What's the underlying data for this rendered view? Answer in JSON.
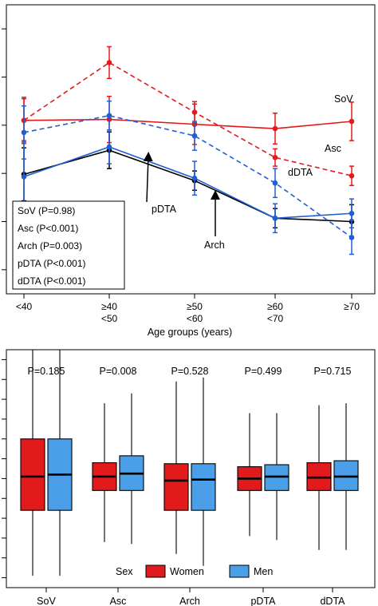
{
  "chart_data": [
    {
      "type": "line",
      "xlabel": "Age groups (years)",
      "ylabel": "",
      "categories": [
        {
          "line1": "<40",
          "line2": ""
        },
        {
          "line1": "≥40",
          "line2": "<50"
        },
        {
          "line1": "≥50",
          "line2": "<60"
        },
        {
          "line1": "≥60",
          "line2": "<70"
        },
        {
          "line1": "≥70",
          "line2": ""
        }
      ],
      "ylim": [
        0,
        6
      ],
      "y_ticks": [
        0.5,
        1.5,
        2.5,
        3.5,
        4.5,
        5.5
      ],
      "grid": false,
      "legend_position": "bottom-left",
      "series": [
        {
          "name": "SoV",
          "color": "#e31a1c",
          "dash": "solid",
          "values": [
            3.6,
            3.62,
            3.52,
            3.43,
            3.58
          ],
          "err": [
            0.48,
            0.48,
            0.42,
            0.32,
            0.4
          ]
        },
        {
          "name": "Asc",
          "color": "#e31a1c",
          "dash": "dashed",
          "values": [
            3.6,
            4.8,
            3.77,
            2.83,
            2.45
          ],
          "err": [
            0.45,
            0.33,
            0.22,
            0.18,
            0.2
          ]
        },
        {
          "name": "Arch",
          "color": "#000000",
          "dash": "solid",
          "values": [
            2.48,
            2.98,
            2.35,
            1.57,
            1.5
          ],
          "err": [
            0.55,
            0.38,
            0.2,
            0.2,
            0.35
          ]
        },
        {
          "name": "pDTA",
          "color": "#1f5fd6",
          "dash": "solid",
          "values": [
            2.43,
            3.05,
            2.4,
            1.57,
            1.67
          ],
          "err": [
            0.75,
            0.35,
            0.35,
            0.3,
            0.3
          ]
        },
        {
          "name": "dDTA",
          "color": "#1f5fd6",
          "dash": "dashed",
          "values": [
            3.35,
            3.7,
            3.28,
            2.3,
            1.17
          ],
          "err": [
            0.55,
            0.3,
            0.3,
            0.3,
            0.35
          ]
        }
      ],
      "line_labels": [
        {
          "series": "SoV",
          "text": "SoV"
        },
        {
          "series": "Asc",
          "text": "Asc"
        },
        {
          "series": "dDTA",
          "text": "dDTA"
        },
        {
          "series": "pDTA",
          "text": "pDTA"
        },
        {
          "series": "Arch",
          "text": "Arch"
        }
      ],
      "legend": [
        "SoV (P=0.98)",
        "Asc (P<0.001)",
        "Arch (P=0.003)",
        "pDTA (P<0.001)",
        "dDTA (P<0.001)"
      ]
    },
    {
      "type": "boxplot",
      "xlabel": "",
      "ylabel": "",
      "categories": [
        "SoV",
        "Asc",
        "Arch",
        "pDTA",
        "dDTA"
      ],
      "ylim": [
        0,
        12
      ],
      "y_ticks": [
        0.5,
        1.5,
        2.5,
        3.5,
        4.5,
        5.5,
        6.5,
        7.5,
        8.5,
        9.5,
        10.5,
        11.5
      ],
      "grid": false,
      "p_values": [
        "P=0.185",
        "P=0.008",
        "P=0.528",
        "P=0.499",
        "P=0.715"
      ],
      "legend_title": "Sex",
      "legend_position": "bottom",
      "series": [
        {
          "name": "Women",
          "color": "#e31a1c",
          "boxes": [
            {
              "min": 0.6,
              "q1": 3.9,
              "median": 5.6,
              "q3": 7.5,
              "max": 12.0
            },
            {
              "min": 2.3,
              "q1": 4.9,
              "median": 5.6,
              "q3": 6.3,
              "max": 9.3
            },
            {
              "min": 1.7,
              "q1": 3.9,
              "median": 5.4,
              "q3": 6.25,
              "max": 10.4
            },
            {
              "min": 2.6,
              "q1": 4.9,
              "median": 5.5,
              "q3": 6.1,
              "max": 8.8
            },
            {
              "min": 1.9,
              "q1": 4.9,
              "median": 5.55,
              "q3": 6.3,
              "max": 9.2
            }
          ]
        },
        {
          "name": "Men",
          "color": "#4a9fe8",
          "boxes": [
            {
              "min": 0.6,
              "q1": 3.9,
              "median": 5.7,
              "q3": 7.5,
              "max": 12.0
            },
            {
              "min": 2.2,
              "q1": 4.9,
              "median": 5.75,
              "q3": 6.65,
              "max": 9.8
            },
            {
              "min": 1.1,
              "q1": 3.9,
              "median": 5.45,
              "q3": 6.25,
              "max": 10.6
            },
            {
              "min": 2.4,
              "q1": 4.9,
              "median": 5.6,
              "q3": 6.2,
              "max": 8.8
            },
            {
              "min": 1.9,
              "q1": 4.9,
              "median": 5.6,
              "q3": 6.4,
              "max": 9.3
            }
          ]
        }
      ]
    }
  ]
}
